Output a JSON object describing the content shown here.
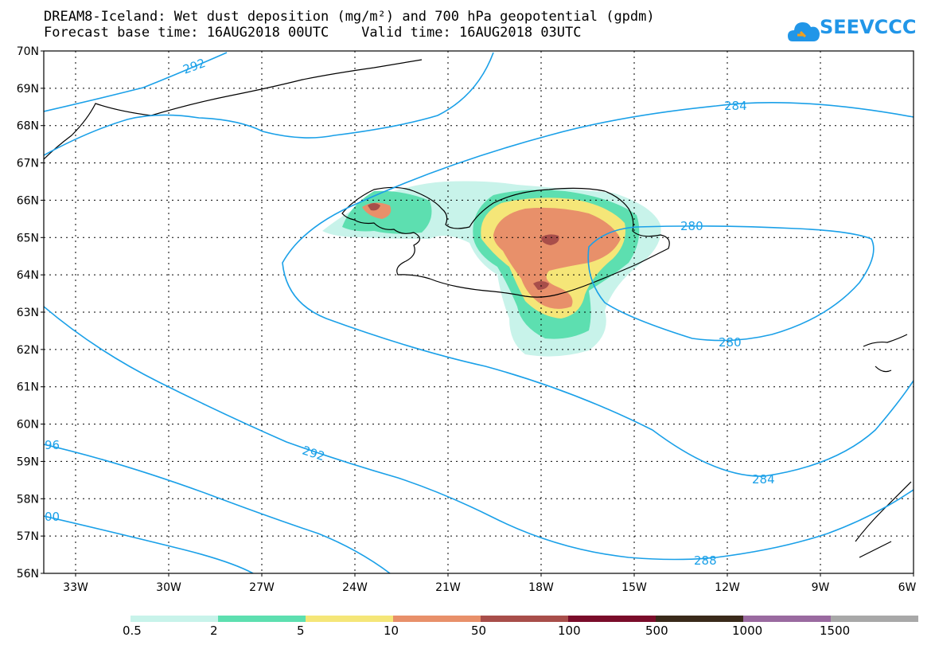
{
  "title_line1": "DREAM8-Iceland: Wet dust deposition (mg/m²) and 700 hPa geopotential (gpdm)",
  "title_line2": "Forecast base time: 16AUG2018 00UTC    Valid time: 16AUG2018 03UTC",
  "logo_text": "SEEVCCC",
  "lat_labels": [
    "70N",
    "69N",
    "68N",
    "67N",
    "66N",
    "65N",
    "64N",
    "63N",
    "62N",
    "61N",
    "60N",
    "59N",
    "58N",
    "57N",
    "56N"
  ],
  "lon_labels": [
    "33W",
    "30W",
    "27W",
    "24W",
    "21W",
    "18W",
    "15W",
    "12W",
    "9W",
    "6W"
  ],
  "contour_labels": [
    "292",
    "284",
    "280",
    "280",
    "292",
    "284",
    "288",
    "96",
    "00"
  ],
  "legend": {
    "colors": [
      "#c8f3ea",
      "#5ddfb0",
      "#f5e678",
      "#e8906a",
      "#a84e4a",
      "#7a0c2a",
      "#3a2a1a",
      "#9a6aa0",
      "#a8a8a8"
    ],
    "labels": [
      "0.5",
      "2",
      "5",
      "10",
      "50",
      "100",
      "500",
      "1000",
      "1500"
    ]
  },
  "colors": {
    "contour": "#1aa0e8",
    "coast": "#000000",
    "grid": "#000000"
  }
}
